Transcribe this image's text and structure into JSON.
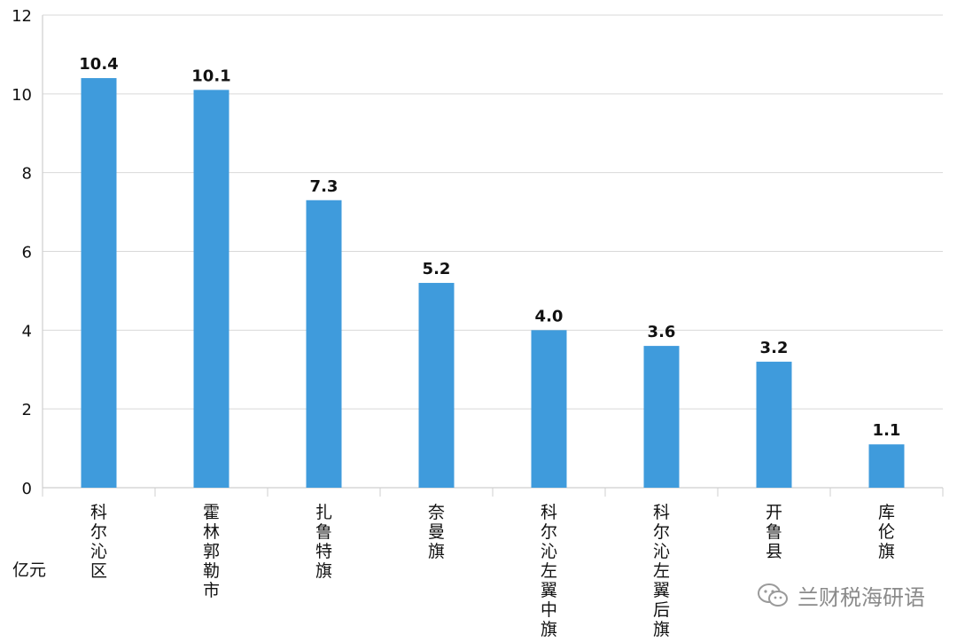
{
  "chart_data": {
    "type": "bar",
    "categories": [
      "科尔沁区",
      "霍林郭勒市",
      "扎鲁特旗",
      "奈曼旗",
      "科尔沁左翼中旗",
      "科尔沁左翼后旗",
      "开鲁县",
      "库伦旗"
    ],
    "values": [
      10.4,
      10.1,
      7.3,
      5.2,
      4.0,
      3.6,
      3.2,
      1.1
    ],
    "data_labels": [
      "10.4",
      "10.1",
      "7.3",
      "5.2",
      "4.0",
      "3.6",
      "3.2",
      "1.1"
    ],
    "yticks": [
      "0",
      "2",
      "4",
      "6",
      "8",
      "10",
      "12"
    ],
    "ylim": [
      0,
      12
    ],
    "ylabel": "亿元",
    "xlabel": "",
    "title": "",
    "grid": true,
    "bar_color": "#3f9bdc"
  },
  "watermark": {
    "text": "兰财税海研语",
    "icon": "wechat-icon"
  }
}
